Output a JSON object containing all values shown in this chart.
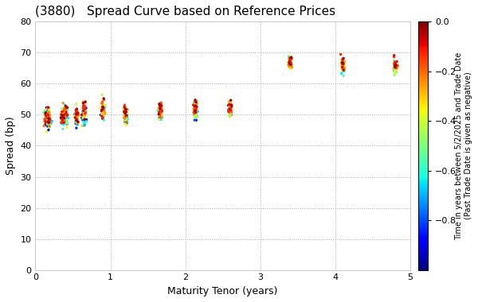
{
  "title": "(3880)   Spread Curve based on Reference Prices",
  "xlabel": "Maturity Tenor (years)",
  "ylabel": "Spread (bp)",
  "colorbar_label": "Time in years between 5/2/2025 and Trade Date\n(Past Trade Date is given as negative)",
  "xlim": [
    0,
    5
  ],
  "ylim": [
    0,
    80
  ],
  "xticks": [
    0,
    1,
    2,
    3,
    4,
    5
  ],
  "yticks": [
    0,
    10,
    20,
    30,
    40,
    50,
    60,
    70,
    80
  ],
  "cmap": "jet",
  "vmin": -1.0,
  "vmax": 0.0,
  "colorbar_ticks": [
    0.0,
    -0.2,
    -0.4,
    -0.6,
    -0.8
  ],
  "background_color": "#ffffff",
  "grid_color": "#aaaaaa",
  "grid_style": "dotted",
  "point_size": 6
}
